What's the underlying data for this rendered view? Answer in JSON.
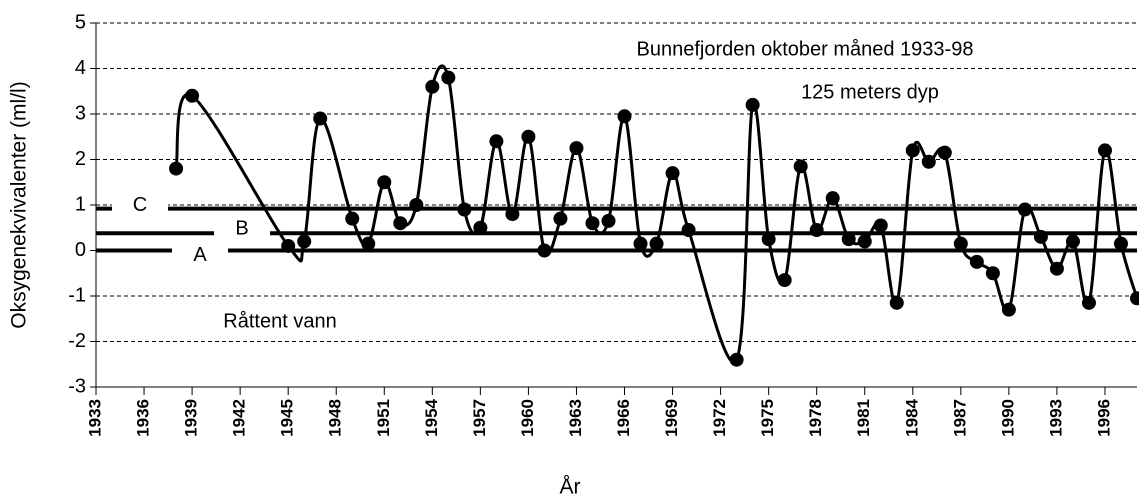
{
  "chart_data": {
    "type": "line",
    "title": "Bunnefjorden oktober måned 1933-98",
    "subtitle": "125 meters dyp",
    "annotation": "Råttent vann",
    "x_label": "År",
    "y_label": "Oksygenekvivalenter (ml/l)",
    "xlim": [
      1933,
      1998
    ],
    "ylim": [
      -3,
      5
    ],
    "xticks": [
      1933,
      1936,
      1939,
      1942,
      1945,
      1948,
      1951,
      1954,
      1957,
      1960,
      1963,
      1966,
      1969,
      1972,
      1975,
      1978,
      1981,
      1984,
      1987,
      1990,
      1993,
      1996
    ],
    "yticks": [
      -3,
      -2,
      -1,
      0,
      1,
      2,
      3,
      4,
      5
    ],
    "grid": true,
    "reference_lines": [
      {
        "label": "A",
        "value": 0
      },
      {
        "label": "B",
        "value": 0.38
      },
      {
        "label": "C",
        "value": 0.92
      }
    ],
    "series": [
      {
        "color": "#000000",
        "x": [
          1938,
          1939,
          1945,
          1946,
          1947,
          1949,
          1950,
          1951,
          1952,
          1953,
          1954,
          1955,
          1956,
          1957,
          1958,
          1959,
          1960,
          1961,
          1962,
          1963,
          1964,
          1965,
          1966,
          1967,
          1968,
          1969,
          1970,
          1973,
          1974,
          1975,
          1976,
          1977,
          1978,
          1979,
          1980,
          1981,
          1982,
          1983,
          1984,
          1985,
          1986,
          1987,
          1988,
          1989,
          1990,
          1991,
          1992,
          1993,
          1994,
          1995,
          1996,
          1997,
          1998
        ],
        "values": [
          1.8,
          3.4,
          0.1,
          0.2,
          2.9,
          0.7,
          0.15,
          1.5,
          0.6,
          1.0,
          3.6,
          3.8,
          0.9,
          0.5,
          2.4,
          0.8,
          2.5,
          0.0,
          0.7,
          2.25,
          0.6,
          0.65,
          2.95,
          0.15,
          0.15,
          1.7,
          0.45,
          -2.4,
          3.2,
          0.25,
          -0.65,
          1.85,
          0.45,
          1.15,
          0.25,
          0.2,
          0.55,
          -1.15,
          2.2,
          1.95,
          2.15,
          0.15,
          -0.25,
          -0.5,
          -1.3,
          0.9,
          0.3,
          -0.4,
          0.2,
          -1.15,
          2.2,
          0.15,
          -1.05
        ]
      }
    ]
  }
}
